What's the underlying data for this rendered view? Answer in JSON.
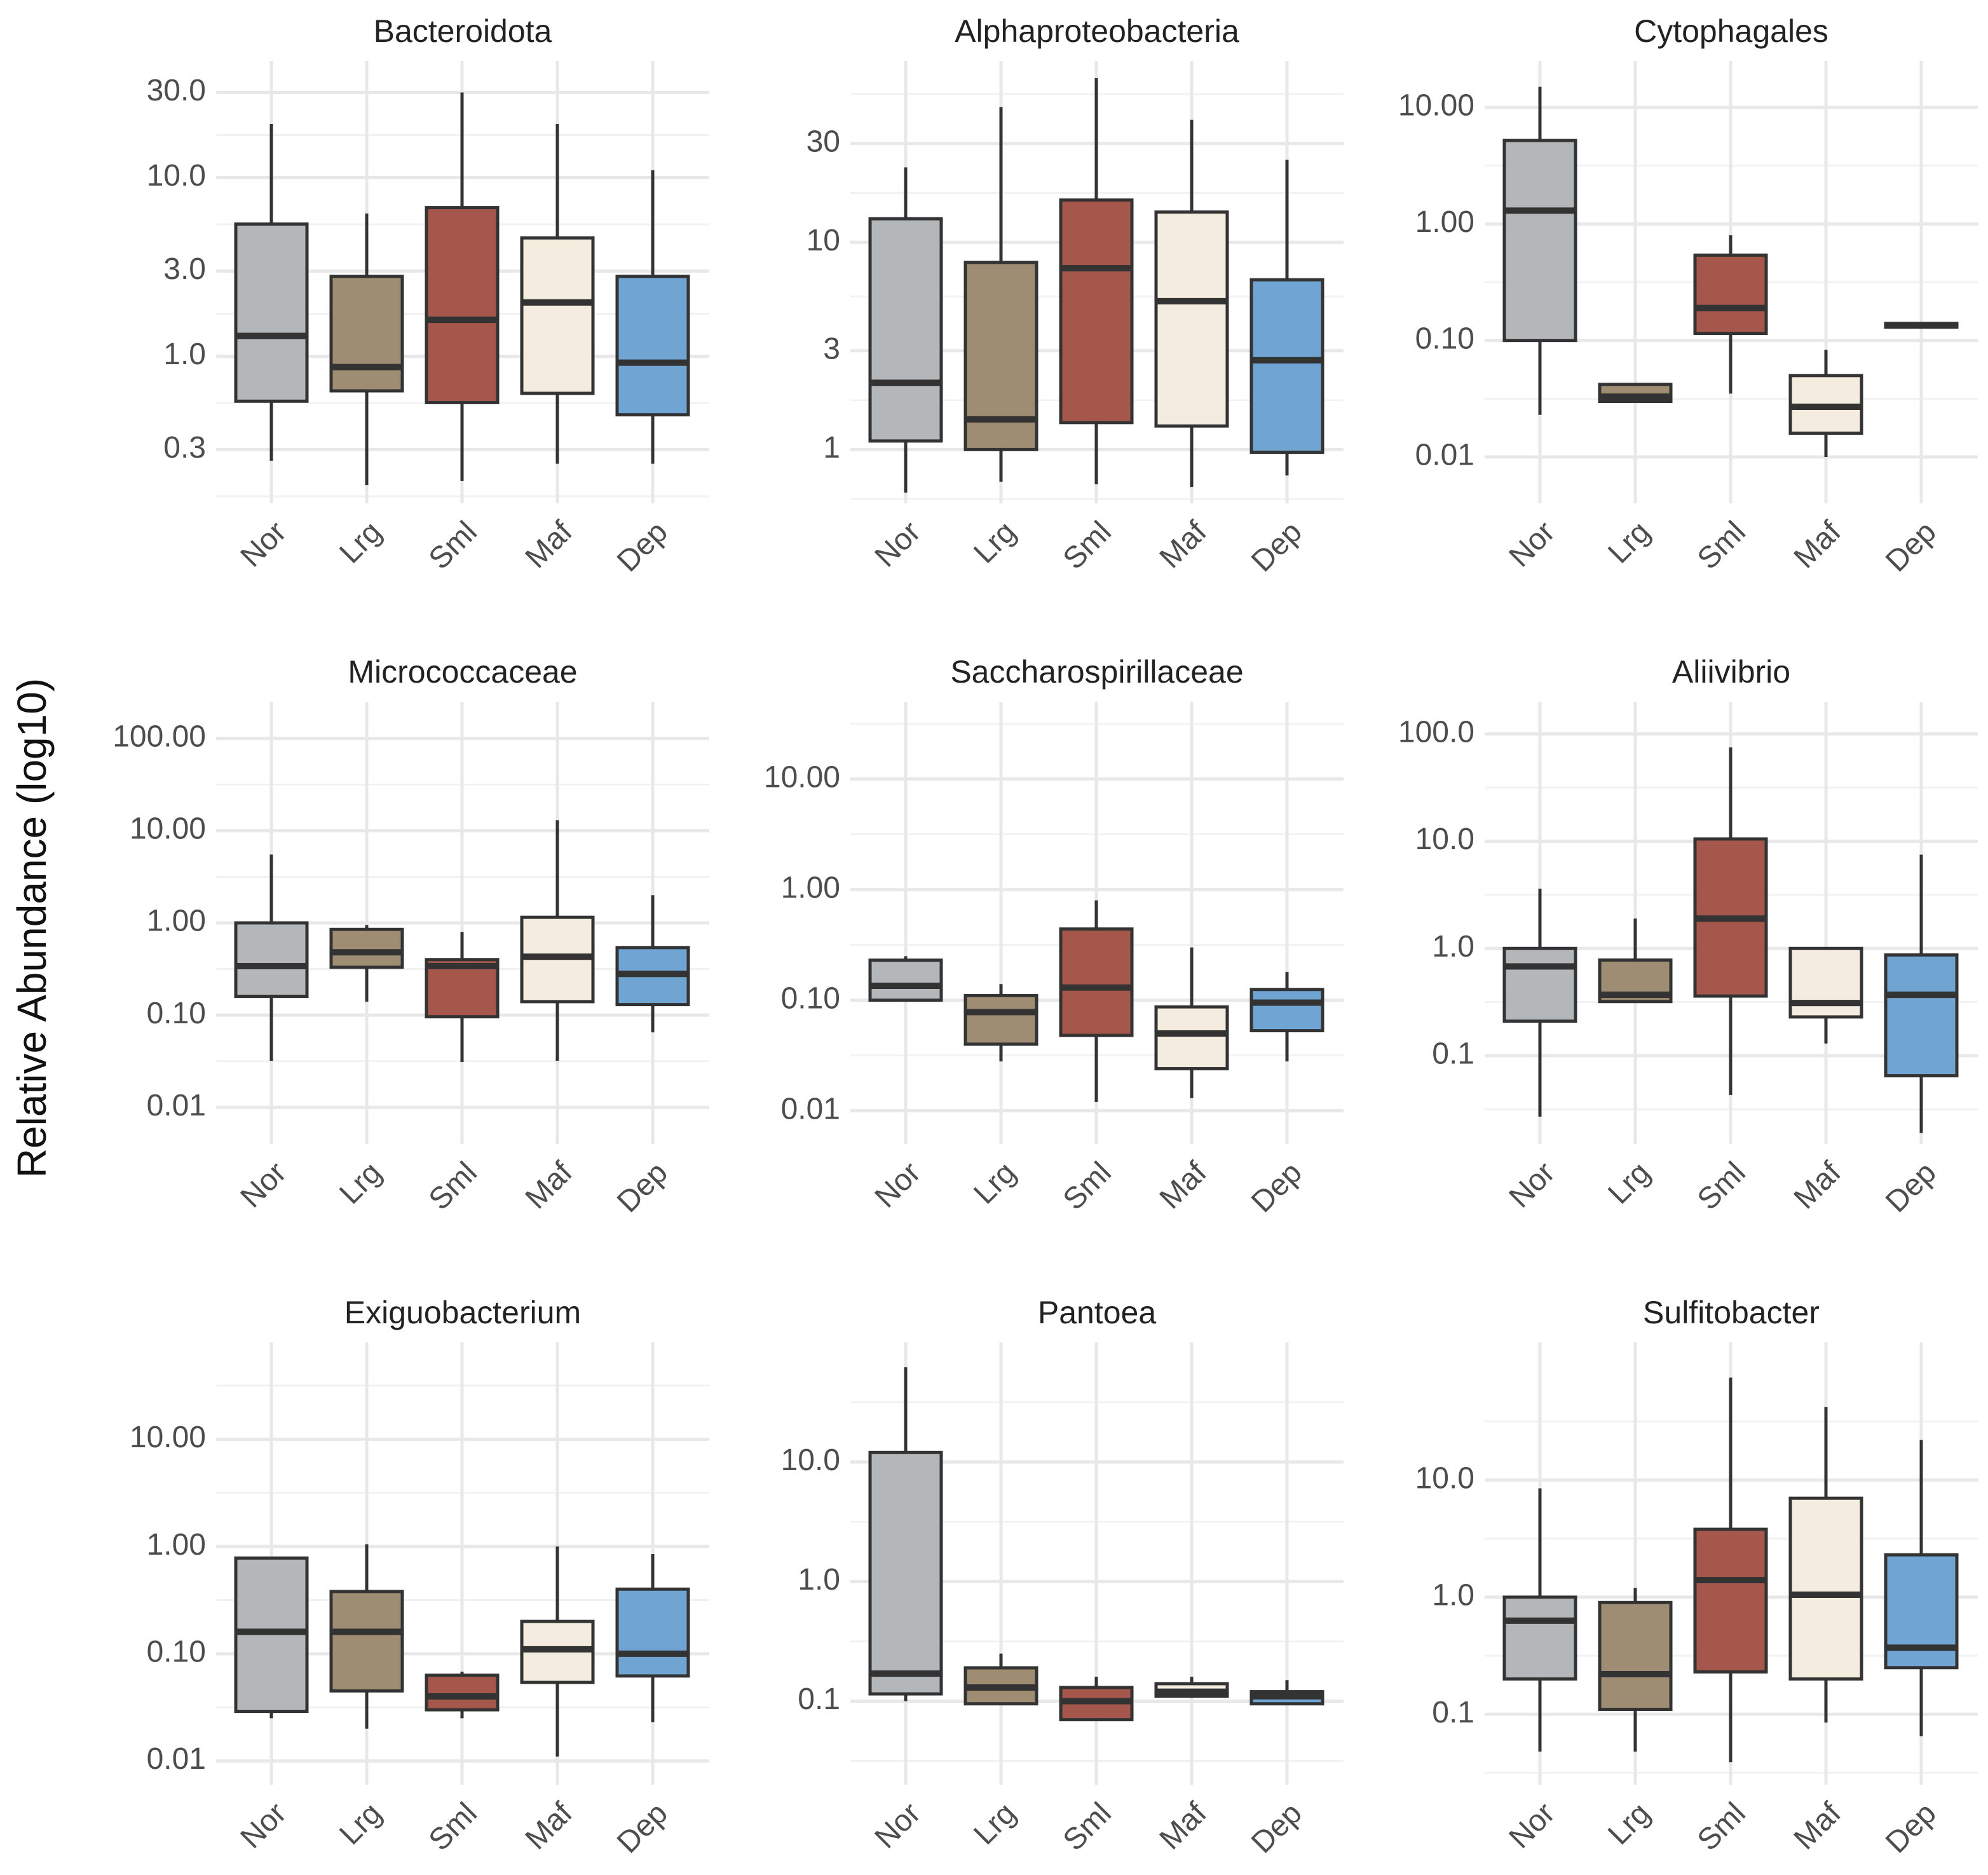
{
  "figure": {
    "ylabel": "Relative Abundance (log10)"
  },
  "colors": {
    "Nor": "#b3b7b9",
    "Lrg": "#9e8d72",
    "Sml": "#a6574b",
    "Maf": "#f5ece0",
    "Dep": "#70a5d3"
  },
  "chart_data": [
    {
      "type": "boxplot",
      "title": "Bacteroidota",
      "scale": "log10",
      "categories": [
        "Nor",
        "Lrg",
        "Sml",
        "Maf",
        "Dep"
      ],
      "yticks": [
        0.3,
        1,
        3,
        10,
        30
      ],
      "ytick_labels": [
        "0.3",
        "1.0",
        "3.0",
        "10.0",
        "30.0"
      ],
      "ylim": [
        0.15,
        45
      ],
      "boxes": [
        {
          "min": 0.26,
          "q1": 0.56,
          "median": 1.3,
          "q3": 5.5,
          "max": 20
        },
        {
          "min": 0.19,
          "q1": 0.64,
          "median": 0.87,
          "q3": 2.8,
          "max": 6.3
        },
        {
          "min": 0.2,
          "q1": 0.55,
          "median": 1.6,
          "q3": 6.8,
          "max": 30
        },
        {
          "min": 0.25,
          "q1": 0.62,
          "median": 2.0,
          "q3": 4.6,
          "max": 20
        },
        {
          "min": 0.25,
          "q1": 0.47,
          "median": 0.92,
          "q3": 2.8,
          "max": 11
        }
      ]
    },
    {
      "type": "boxplot",
      "title": "Alphaproteobacteria",
      "scale": "log10",
      "categories": [
        "Nor",
        "Lrg",
        "Sml",
        "Maf",
        "Dep"
      ],
      "yticks": [
        1,
        3,
        10,
        30
      ],
      "ytick_labels": [
        "1",
        "3",
        "10",
        "30"
      ],
      "ylim": [
        0.55,
        75
      ],
      "boxes": [
        {
          "min": 0.62,
          "q1": 1.1,
          "median": 2.1,
          "q3": 13,
          "max": 23
        },
        {
          "min": 0.7,
          "q1": 1.0,
          "median": 1.4,
          "q3": 8.0,
          "max": 45
        },
        {
          "min": 0.68,
          "q1": 1.35,
          "median": 7.5,
          "q3": 16,
          "max": 62
        },
        {
          "min": 0.66,
          "q1": 1.3,
          "median": 5.2,
          "q3": 14,
          "max": 39
        },
        {
          "min": 0.75,
          "q1": 0.97,
          "median": 2.7,
          "q3": 6.6,
          "max": 25
        }
      ]
    },
    {
      "type": "boxplot",
      "title": "Cytophagales",
      "scale": "log10",
      "categories": [
        "Nor",
        "Lrg",
        "Sml",
        "Maf",
        "Dep"
      ],
      "yticks": [
        0.01,
        0.1,
        1,
        10
      ],
      "ytick_labels": [
        "0.01",
        "0.10",
        "1.00",
        "10.00"
      ],
      "ylim": [
        0.004,
        25
      ],
      "boxes": [
        {
          "min": 0.023,
          "q1": 0.1,
          "median": 1.3,
          "q3": 5.2,
          "max": 15
        },
        {
          "min": 0.03,
          "q1": 0.03,
          "median": 0.033,
          "q3": 0.042,
          "max": 0.042
        },
        {
          "min": 0.035,
          "q1": 0.115,
          "median": 0.19,
          "q3": 0.54,
          "max": 0.8
        },
        {
          "min": 0.01,
          "q1": 0.016,
          "median": 0.027,
          "q3": 0.05,
          "max": 0.083
        },
        {
          "min": 0.13,
          "q1": 0.13,
          "median": 0.135,
          "q3": 0.14,
          "max": 0.14
        }
      ]
    },
    {
      "type": "boxplot",
      "title": "Micrococcaceae",
      "scale": "log10",
      "categories": [
        "Nor",
        "Lrg",
        "Sml",
        "Maf",
        "Dep"
      ],
      "yticks": [
        0.01,
        0.1,
        1,
        10,
        100
      ],
      "ytick_labels": [
        "0.01",
        "0.10",
        "1.00",
        "10.00",
        "100.00"
      ],
      "ylim": [
        0.004,
        250
      ],
      "boxes": [
        {
          "min": 0.032,
          "q1": 0.16,
          "median": 0.34,
          "q3": 1.0,
          "max": 5.5
        },
        {
          "min": 0.14,
          "q1": 0.33,
          "median": 0.48,
          "q3": 0.85,
          "max": 0.95
        },
        {
          "min": 0.031,
          "q1": 0.096,
          "median": 0.34,
          "q3": 0.4,
          "max": 0.8
        },
        {
          "min": 0.032,
          "q1": 0.14,
          "median": 0.43,
          "q3": 1.15,
          "max": 13
        },
        {
          "min": 0.065,
          "q1": 0.13,
          "median": 0.28,
          "q3": 0.54,
          "max": 2.0
        }
      ]
    },
    {
      "type": "boxplot",
      "title": "Saccharospirillaceae",
      "scale": "log10",
      "categories": [
        "Nor",
        "Lrg",
        "Sml",
        "Maf",
        "Dep"
      ],
      "yticks": [
        0.01,
        0.1,
        1,
        10
      ],
      "ytick_labels": [
        "0.01",
        "0.10",
        "1.00",
        "10.00"
      ],
      "ylim": [
        0.005,
        50
      ],
      "boxes": [
        {
          "min": 0.1,
          "q1": 0.1,
          "median": 0.135,
          "q3": 0.23,
          "max": 0.25
        },
        {
          "min": 0.028,
          "q1": 0.04,
          "median": 0.078,
          "q3": 0.11,
          "max": 0.14
        },
        {
          "min": 0.012,
          "q1": 0.048,
          "median": 0.13,
          "q3": 0.44,
          "max": 0.8
        },
        {
          "min": 0.013,
          "q1": 0.024,
          "median": 0.05,
          "q3": 0.087,
          "max": 0.3
        },
        {
          "min": 0.028,
          "q1": 0.053,
          "median": 0.095,
          "q3": 0.125,
          "max": 0.18
        }
      ]
    },
    {
      "type": "boxplot",
      "title": "Aliivibrio",
      "scale": "log10",
      "categories": [
        "Nor",
        "Lrg",
        "Sml",
        "Maf",
        "Dep"
      ],
      "yticks": [
        0.1,
        1,
        10,
        100
      ],
      "ytick_labels": [
        "0.1",
        "1.0",
        "10.0",
        "100.0"
      ],
      "ylim": [
        0.015,
        200
      ],
      "boxes": [
        {
          "min": 0.027,
          "q1": 0.21,
          "median": 0.68,
          "q3": 1.0,
          "max": 3.6
        },
        {
          "min": 0.32,
          "q1": 0.32,
          "median": 0.37,
          "q3": 0.78,
          "max": 1.9
        },
        {
          "min": 0.043,
          "q1": 0.36,
          "median": 1.9,
          "q3": 10.5,
          "max": 75
        },
        {
          "min": 0.13,
          "q1": 0.23,
          "median": 0.31,
          "q3": 1.0,
          "max": 1.0
        },
        {
          "min": 0.019,
          "q1": 0.065,
          "median": 0.37,
          "q3": 0.87,
          "max": 7.5
        }
      ]
    },
    {
      "type": "boxplot",
      "title": "Exiguobacterium",
      "scale": "log10",
      "categories": [
        "Nor",
        "Lrg",
        "Sml",
        "Maf",
        "Dep"
      ],
      "yticks": [
        0.01,
        0.1,
        1,
        10
      ],
      "ytick_labels": [
        "0.01",
        "0.10",
        "1.00",
        "10.00"
      ],
      "ylim": [
        0.006,
        80
      ],
      "boxes": [
        {
          "min": 0.025,
          "q1": 0.029,
          "median": 0.16,
          "q3": 0.78,
          "max": 0.78
        },
        {
          "min": 0.02,
          "q1": 0.045,
          "median": 0.16,
          "q3": 0.38,
          "max": 1.05
        },
        {
          "min": 0.025,
          "q1": 0.03,
          "median": 0.04,
          "q3": 0.063,
          "max": 0.068
        },
        {
          "min": 0.011,
          "q1": 0.054,
          "median": 0.11,
          "q3": 0.2,
          "max": 1.0
        },
        {
          "min": 0.023,
          "q1": 0.062,
          "median": 0.1,
          "q3": 0.4,
          "max": 0.85
        }
      ]
    },
    {
      "type": "boxplot",
      "title": "Pantoea",
      "scale": "log10",
      "categories": [
        "Nor",
        "Lrg",
        "Sml",
        "Maf",
        "Dep"
      ],
      "yticks": [
        0.1,
        1,
        10
      ],
      "ytick_labels": [
        "0.1",
        "1.0",
        "10.0"
      ],
      "ylim": [
        0.02,
        100
      ],
      "boxes": [
        {
          "min": 0.1,
          "q1": 0.115,
          "median": 0.17,
          "q3": 12,
          "max": 62
        },
        {
          "min": 0.095,
          "q1": 0.095,
          "median": 0.13,
          "q3": 0.19,
          "max": 0.25
        },
        {
          "min": 0.07,
          "q1": 0.07,
          "median": 0.1,
          "q3": 0.13,
          "max": 0.16
        },
        {
          "min": 0.11,
          "q1": 0.11,
          "median": 0.12,
          "q3": 0.14,
          "max": 0.16
        },
        {
          "min": 0.095,
          "q1": 0.095,
          "median": 0.11,
          "q3": 0.12,
          "max": 0.15
        }
      ]
    },
    {
      "type": "boxplot",
      "title": "Sulfitobacter",
      "scale": "log10",
      "categories": [
        "Nor",
        "Lrg",
        "Sml",
        "Maf",
        "Dep"
      ],
      "yticks": [
        0.1,
        1,
        10
      ],
      "ytick_labels": [
        "0.1",
        "1.0",
        "10.0"
      ],
      "ylim": [
        0.025,
        150
      ],
      "boxes": [
        {
          "min": 0.048,
          "q1": 0.2,
          "median": 0.63,
          "q3": 1.0,
          "max": 8.5
        },
        {
          "min": 0.048,
          "q1": 0.11,
          "median": 0.22,
          "q3": 0.9,
          "max": 1.2
        },
        {
          "min": 0.039,
          "q1": 0.23,
          "median": 1.4,
          "q3": 3.8,
          "max": 75
        },
        {
          "min": 0.085,
          "q1": 0.2,
          "median": 1.05,
          "q3": 7.0,
          "max": 42
        },
        {
          "min": 0.065,
          "q1": 0.25,
          "median": 0.37,
          "q3": 2.3,
          "max": 22
        }
      ]
    }
  ]
}
